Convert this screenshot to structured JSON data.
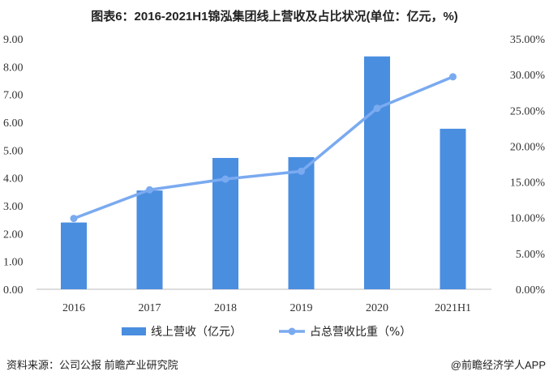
{
  "chart_data": {
    "type": "bar",
    "title": "图表6：2016-2021H1锦泓集团线上营收及占比状况(单位：亿元，%)",
    "categories": [
      "2016",
      "2017",
      "2018",
      "2019",
      "2020",
      "2021H1"
    ],
    "series": [
      {
        "name": "线上营收（亿元）",
        "type": "bar",
        "axis": "left",
        "color": "#4a8ee0",
        "values": [
          2.4,
          3.55,
          4.72,
          4.75,
          8.37,
          5.77
        ]
      },
      {
        "name": "占总营收比重（%）",
        "type": "line",
        "axis": "right",
        "color": "#7aaaf0",
        "values": [
          9.9,
          13.9,
          15.4,
          16.5,
          25.3,
          29.7
        ]
      }
    ],
    "ylim": [
      0,
      9
    ],
    "yticks": [
      "0.00",
      "1.00",
      "2.00",
      "3.00",
      "4.00",
      "5.00",
      "6.00",
      "7.00",
      "8.00",
      "9.00"
    ],
    "y2lim": [
      0,
      35
    ],
    "y2ticks": [
      "0.00%",
      "5.00%",
      "10.00%",
      "15.00%",
      "20.00%",
      "25.00%",
      "30.00%",
      "35.00%"
    ],
    "legend": "bottom",
    "grid": false
  },
  "footer": {
    "source": "资料来源：公司公报 前瞻产业研究院",
    "brand": "@前瞻经济学人APP"
  }
}
